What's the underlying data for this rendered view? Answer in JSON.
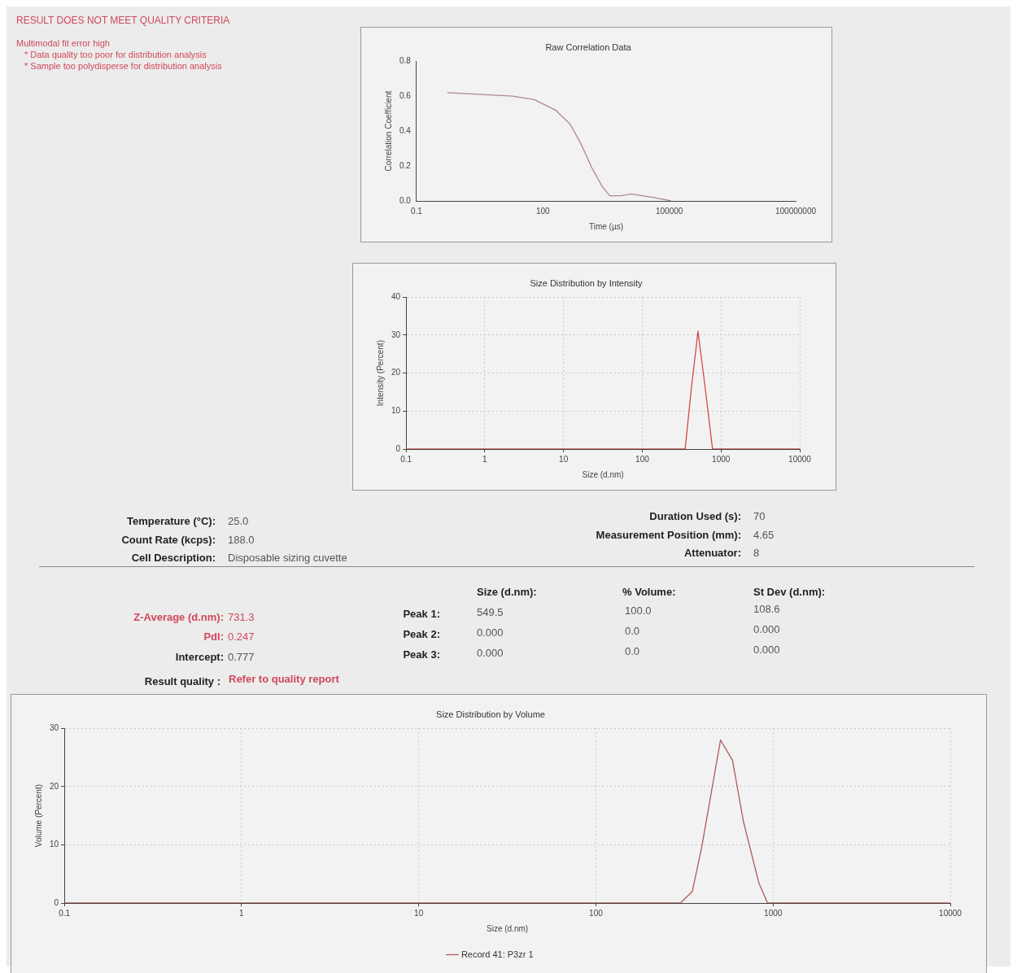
{
  "chart_data": [
    {
      "type": "other",
      "title": "RESULT DOES NOT MEET QUALITY CRITERIA",
      "annotations": [
        "Multimodal fit error high",
        "* Data quality too poor for distribution analysis",
        "* Sample too polydisperse for distribution analysis"
      ]
    },
    {
      "type": "line",
      "title": "Raw Correlation Data",
      "xlabel": "Time (µs)",
      "ylabel": "Correlation Coefficient",
      "log": "x",
      "xlim": [
        0.1,
        100000000
      ],
      "xticks": [
        0.1,
        100,
        100000,
        100000000
      ],
      "ylim": [
        0,
        0.8
      ],
      "yticks": [
        {
          "value": 0,
          "label": "0.0"
        },
        {
          "value": 0.2,
          "label": "0.2"
        },
        {
          "value": 0.4,
          "label": "0.4"
        },
        {
          "value": 0.6,
          "label": "0.6"
        },
        {
          "value": 0.8,
          "label": "0.8"
        }
      ],
      "grid": false,
      "marker": "none",
      "legend": false,
      "series": [
        {
          "color": "#b08888",
          "x": [
            0.54,
            19,
            62,
            200,
            440,
            790,
            1450,
            2600,
            3900,
            6900,
            12600,
            23000,
            41000,
            110000
          ],
          "values": [
            0.62,
            0.6,
            0.58,
            0.52,
            0.44,
            0.33,
            0.19,
            0.08,
            0.03,
            0.03,
            0.04,
            0.03,
            0.02,
            0
          ]
        }
      ]
    },
    {
      "type": "line",
      "title": "Size Distribution by Intensity",
      "xlabel": "Size (d.nm)",
      "ylabel": "Intensity (Percent)",
      "log": "x",
      "xlim": [
        0.1,
        10000
      ],
      "xticks": [
        0.1,
        1,
        10,
        100,
        1000,
        10000
      ],
      "ylim": [
        0,
        40
      ],
      "yticks": [
        0,
        10,
        20,
        30,
        40
      ],
      "grid": true,
      "marker": "none",
      "legend": false,
      "series": [
        {
          "color": "#d04848",
          "x": [
            0.1,
            1,
            10,
            100,
            350,
            420,
            510,
            630,
            780,
            1000,
            10000
          ],
          "values": [
            0,
            0,
            0,
            0,
            0,
            16,
            31,
            16,
            0,
            0,
            0
          ]
        }
      ]
    },
    {
      "type": "other",
      "annotations": [
        "Temperature (°C):",
        "25.0",
        "Count Rate (kcps):",
        "188.0",
        "Cell Description:",
        "Disposable sizing cuvette",
        "Duration Used (s):",
        "70",
        "Measurement Position (mm):",
        "4.65",
        "Attenuator:",
        "8",
        "Size (d.nm):",
        "% Volume:",
        "St Dev (d.nm):",
        "Z-Average (d.nm):",
        "731.3",
        "Peak 1:",
        "549.5",
        "100.0",
        "108.6",
        "PdI:",
        "0.247",
        "Peak 2:",
        "0.000",
        "0.0",
        "0.000",
        "Intercept:",
        "0.777",
        "Peak 3:",
        "0.000",
        "0.0",
        "0.000",
        "Result quality :",
        "Refer to quality report"
      ]
    },
    {
      "type": "line",
      "title": "Size Distribution by Volume",
      "xlabel": "Size (d.nm)",
      "ylabel": "Volume (Percent)",
      "log": "x",
      "xlim": [
        0.1,
        10000
      ],
      "xticks": [
        0.1,
        1,
        10,
        100,
        1000,
        10000
      ],
      "ylim": [
        0,
        30
      ],
      "yticks": [
        0,
        10,
        20,
        30
      ],
      "grid": true,
      "marker": "none",
      "legend": "bottom",
      "series": [
        {
          "name": "Record 41: P3zr 1",
          "color": "#b05858",
          "x": [
            0.1,
            1,
            10,
            100,
            300,
            350,
            395,
            445,
            505,
            590,
            680,
            830,
            930,
            1000,
            10000
          ],
          "values": [
            0,
            0,
            0,
            0,
            0,
            2,
            9.5,
            18.5,
            28,
            24.5,
            14,
            3.5,
            0,
            0,
            0
          ]
        }
      ]
    }
  ]
}
